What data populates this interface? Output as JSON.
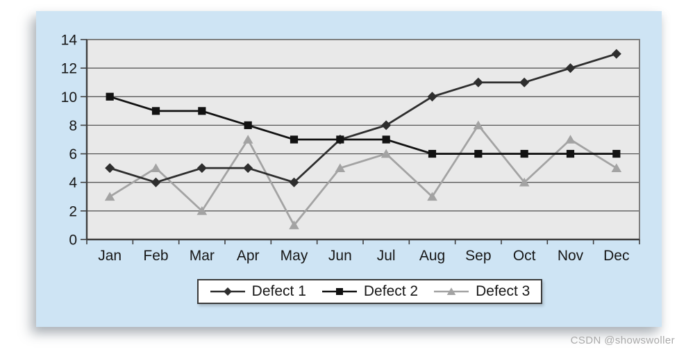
{
  "page": {
    "watermark": "CSDN @showswoller",
    "card_color": "#cee4f4",
    "background_color": "#ffffff"
  },
  "chart_data": {
    "type": "line",
    "title": "",
    "xlabel": "",
    "ylabel": "",
    "categories": [
      "Jan",
      "Feb",
      "Mar",
      "Apr",
      "May",
      "Jun",
      "Jul",
      "Aug",
      "Sep",
      "Oct",
      "Nov",
      "Dec"
    ],
    "series": [
      {
        "name": "Defect 1",
        "values": [
          5,
          4,
          5,
          5,
          4,
          7,
          8,
          10,
          11,
          11,
          12,
          13
        ],
        "color": "#2e2e2e",
        "marker": "diamond"
      },
      {
        "name": "Defect 2",
        "values": [
          10,
          9,
          9,
          8,
          7,
          7,
          7,
          6,
          6,
          6,
          6,
          6
        ],
        "color": "#121212",
        "marker": "square"
      },
      {
        "name": "Defect 3",
        "values": [
          3,
          5,
          2,
          7,
          1,
          5,
          6,
          3,
          8,
          4,
          7,
          5
        ],
        "color": "#a3a3a3",
        "marker": "triangle"
      }
    ],
    "draw_order": [
      2,
      0,
      1
    ],
    "ylim": [
      0,
      14
    ],
    "yticks": [
      0,
      2,
      4,
      6,
      8,
      10,
      12,
      14
    ],
    "grid": true,
    "legend_position": "bottom",
    "plot_background": "#e9e9e9",
    "gridline_color": "#4a4a4a",
    "axis_color": "#3f3f3f",
    "border_color": "#7e7e7e",
    "label_color": "#161616"
  }
}
